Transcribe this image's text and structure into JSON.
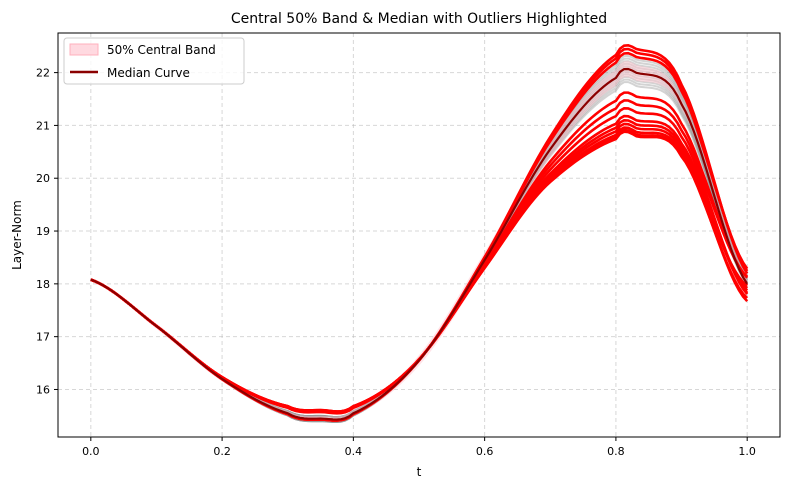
{
  "chart_data": {
    "type": "line",
    "title": "Central 50% Band & Median with Outliers Highlighted",
    "xlabel": "t",
    "ylabel": "Layer-Norm",
    "xlim": [
      -0.05,
      1.05
    ],
    "ylim": [
      15.1,
      22.75
    ],
    "x_ticks": [
      "0.0",
      "0.2",
      "0.4",
      "0.6",
      "0.8",
      "1.0"
    ],
    "y_ticks": [
      "16",
      "17",
      "18",
      "19",
      "20",
      "21",
      "22"
    ],
    "grid": true,
    "legend": {
      "placement": "top-left",
      "entries": [
        "50% Central Band",
        "Median Curve"
      ]
    },
    "colors": {
      "band": "#ffc0cb",
      "median": "#8b0000",
      "outliers": "#ff0000",
      "curves": "#808080"
    },
    "median": {
      "t": [
        0.0,
        0.1,
        0.2,
        0.3,
        0.35,
        0.4,
        0.5,
        0.6,
        0.7,
        0.8,
        0.83,
        0.9,
        1.0
      ],
      "y": [
        18.08,
        17.2,
        16.2,
        15.55,
        15.45,
        15.55,
        16.55,
        18.45,
        20.55,
        21.9,
        22.0,
        21.4,
        18.0
      ]
    },
    "band": {
      "t": [
        0.0,
        0.1,
        0.2,
        0.3,
        0.35,
        0.4,
        0.5,
        0.6,
        0.7,
        0.8,
        0.83,
        0.9,
        1.0
      ],
      "lower": [
        18.06,
        17.15,
        16.15,
        15.5,
        15.42,
        15.5,
        16.45,
        18.3,
        20.4,
        21.75,
        21.85,
        21.3,
        18.05
      ],
      "upper": [
        18.1,
        17.25,
        16.25,
        15.6,
        15.5,
        15.62,
        16.65,
        18.6,
        20.7,
        22.05,
        22.15,
        21.5,
        18.2
      ]
    },
    "outlier_peaks": [
      22.45,
      22.38,
      22.3,
      21.55,
      21.4,
      21.25,
      21.1,
      21.02,
      20.95,
      20.88,
      20.83,
      20.8
    ],
    "grey_peaks": [
      22.3,
      22.25,
      22.2,
      22.15,
      22.1,
      22.05,
      22.0,
      21.95,
      21.9,
      21.85,
      21.8,
      21.75
    ]
  }
}
